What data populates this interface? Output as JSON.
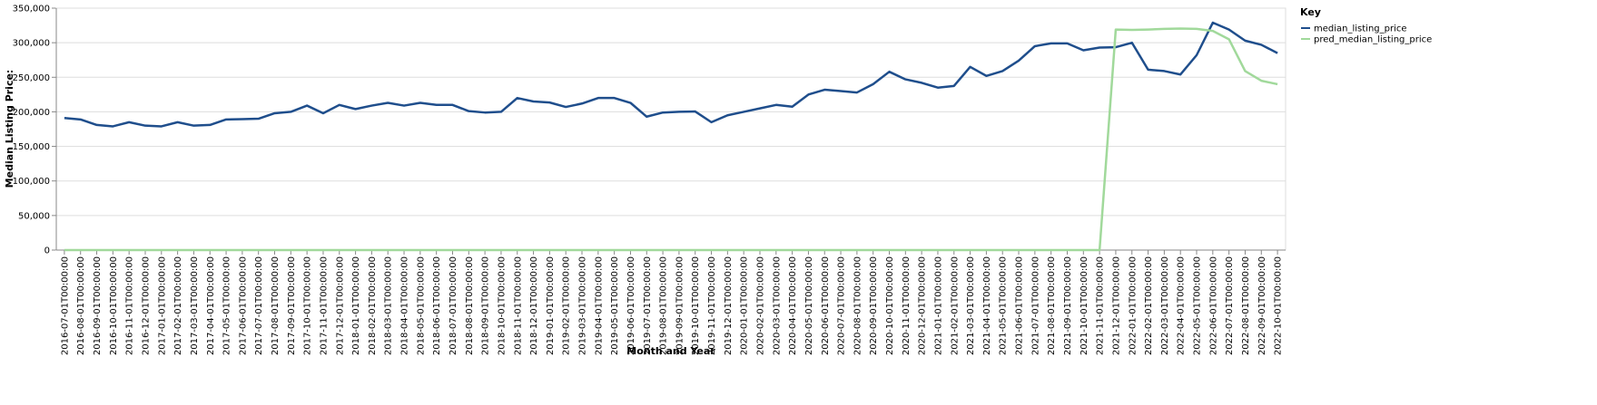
{
  "chart_data": {
    "type": "line",
    "x_label": "Month and Year",
    "y_label": "Median Listing Price:",
    "legend_title": "Key",
    "legend_position": "right",
    "grid": true,
    "categories": [
      "2016-07-01T00:00:00",
      "2016-08-01T00:00:00",
      "2016-09-01T00:00:00",
      "2016-10-01T00:00:00",
      "2016-11-01T00:00:00",
      "2016-12-01T00:00:00",
      "2017-01-01T00:00:00",
      "2017-02-01T00:00:00",
      "2017-03-01T00:00:00",
      "2017-04-01T00:00:00",
      "2017-05-01T00:00:00",
      "2017-06-01T00:00:00",
      "2017-07-01T00:00:00",
      "2017-08-01T00:00:00",
      "2017-09-01T00:00:00",
      "2017-10-01T00:00:00",
      "2017-11-01T00:00:00",
      "2017-12-01T00:00:00",
      "2018-01-01T00:00:00",
      "2018-02-01T00:00:00",
      "2018-03-01T00:00:00",
      "2018-04-01T00:00:00",
      "2018-05-01T00:00:00",
      "2018-06-01T00:00:00",
      "2018-07-01T00:00:00",
      "2018-08-01T00:00:00",
      "2018-09-01T00:00:00",
      "2018-10-01T00:00:00",
      "2018-11-01T00:00:00",
      "2018-12-01T00:00:00",
      "2019-01-01T00:00:00",
      "2019-02-01T00:00:00",
      "2019-03-01T00:00:00",
      "2019-04-01T00:00:00",
      "2019-05-01T00:00:00",
      "2019-06-01T00:00:00",
      "2019-07-01T00:00:00",
      "2019-08-01T00:00:00",
      "2019-09-01T00:00:00",
      "2019-10-01T00:00:00",
      "2019-11-01T00:00:00",
      "2019-12-01T00:00:00",
      "2020-01-01T00:00:00",
      "2020-02-01T00:00:00",
      "2020-03-01T00:00:00",
      "2020-04-01T00:00:00",
      "2020-05-01T00:00:00",
      "2020-06-01T00:00:00",
      "2020-07-01T00:00:00",
      "2020-08-01T00:00:00",
      "2020-09-01T00:00:00",
      "2020-10-01T00:00:00",
      "2020-11-01T00:00:00",
      "2020-12-01T00:00:00",
      "2021-01-01T00:00:00",
      "2021-02-01T00:00:00",
      "2021-03-01T00:00:00",
      "2021-04-01T00:00:00",
      "2021-05-01T00:00:00",
      "2021-06-01T00:00:00",
      "2021-07-01T00:00:00",
      "2021-08-01T00:00:00",
      "2021-09-01T00:00:00",
      "2021-10-01T00:00:00",
      "2021-11-01T00:00:00",
      "2021-12-01T00:00:00",
      "2022-01-01T00:00:00",
      "2022-02-01T00:00:00",
      "2022-03-01T00:00:00",
      "2022-04-01T00:00:00",
      "2022-05-01T00:00:00",
      "2022-06-01T00:00:00",
      "2022-07-01T00:00:00",
      "2022-08-01T00:00:00",
      "2022-09-01T00:00:00",
      "2022-10-01T00:00:00"
    ],
    "series": [
      {
        "name": "median_listing_price",
        "color": "#1f4e8c",
        "values": [
          191000,
          189000,
          181000,
          179000,
          185000,
          180000,
          179000,
          185000,
          180000,
          181000,
          189000,
          189500,
          190000,
          198000,
          200000,
          209000,
          198000,
          210000,
          204000,
          209000,
          213000,
          209000,
          213000,
          210000,
          210000,
          201000,
          199000,
          200000,
          220000,
          215000,
          213500,
          207000,
          212000,
          220000,
          220000,
          213000,
          193000,
          199000,
          200000,
          200500,
          185000,
          195000,
          200000,
          205000,
          210000,
          207500,
          225000,
          232000,
          230000,
          228000,
          240000,
          258000,
          247000,
          242000,
          235000,
          237500,
          265000,
          252000,
          259000,
          274000,
          295000,
          299000,
          299000,
          289000,
          293000,
          293500,
          300000,
          261000,
          259000,
          254000,
          282000,
          329000,
          319000,
          303000,
          297000,
          285000
        ]
      },
      {
        "name": "pred_median_listing_price",
        "color": "#a1d99b",
        "values": [
          0,
          0,
          0,
          0,
          0,
          0,
          0,
          0,
          0,
          0,
          0,
          0,
          0,
          0,
          0,
          0,
          0,
          0,
          0,
          0,
          0,
          0,
          0,
          0,
          0,
          0,
          0,
          0,
          0,
          0,
          0,
          0,
          0,
          0,
          0,
          0,
          0,
          0,
          0,
          0,
          0,
          0,
          0,
          0,
          0,
          0,
          0,
          0,
          0,
          0,
          0,
          0,
          0,
          0,
          0,
          0,
          0,
          0,
          0,
          0,
          0,
          0,
          0,
          0,
          0,
          319000,
          318500,
          319000,
          320000,
          320500,
          320000,
          317000,
          305000,
          259000,
          245000,
          240000
        ]
      }
    ],
    "ylim": [
      0,
      350000
    ],
    "yticks": [
      0,
      {
        "value": 50000,
        "label": "50,000"
      },
      {
        "value": 100000,
        "label": "100,000"
      },
      {
        "value": 150000,
        "label": "150,000"
      },
      {
        "value": 200000,
        "label": "200,000"
      },
      {
        "value": 250000,
        "label": "250,000"
      },
      {
        "value": 300000,
        "label": "300,000"
      },
      {
        "value": 350000,
        "label": "350,000"
      }
    ]
  }
}
